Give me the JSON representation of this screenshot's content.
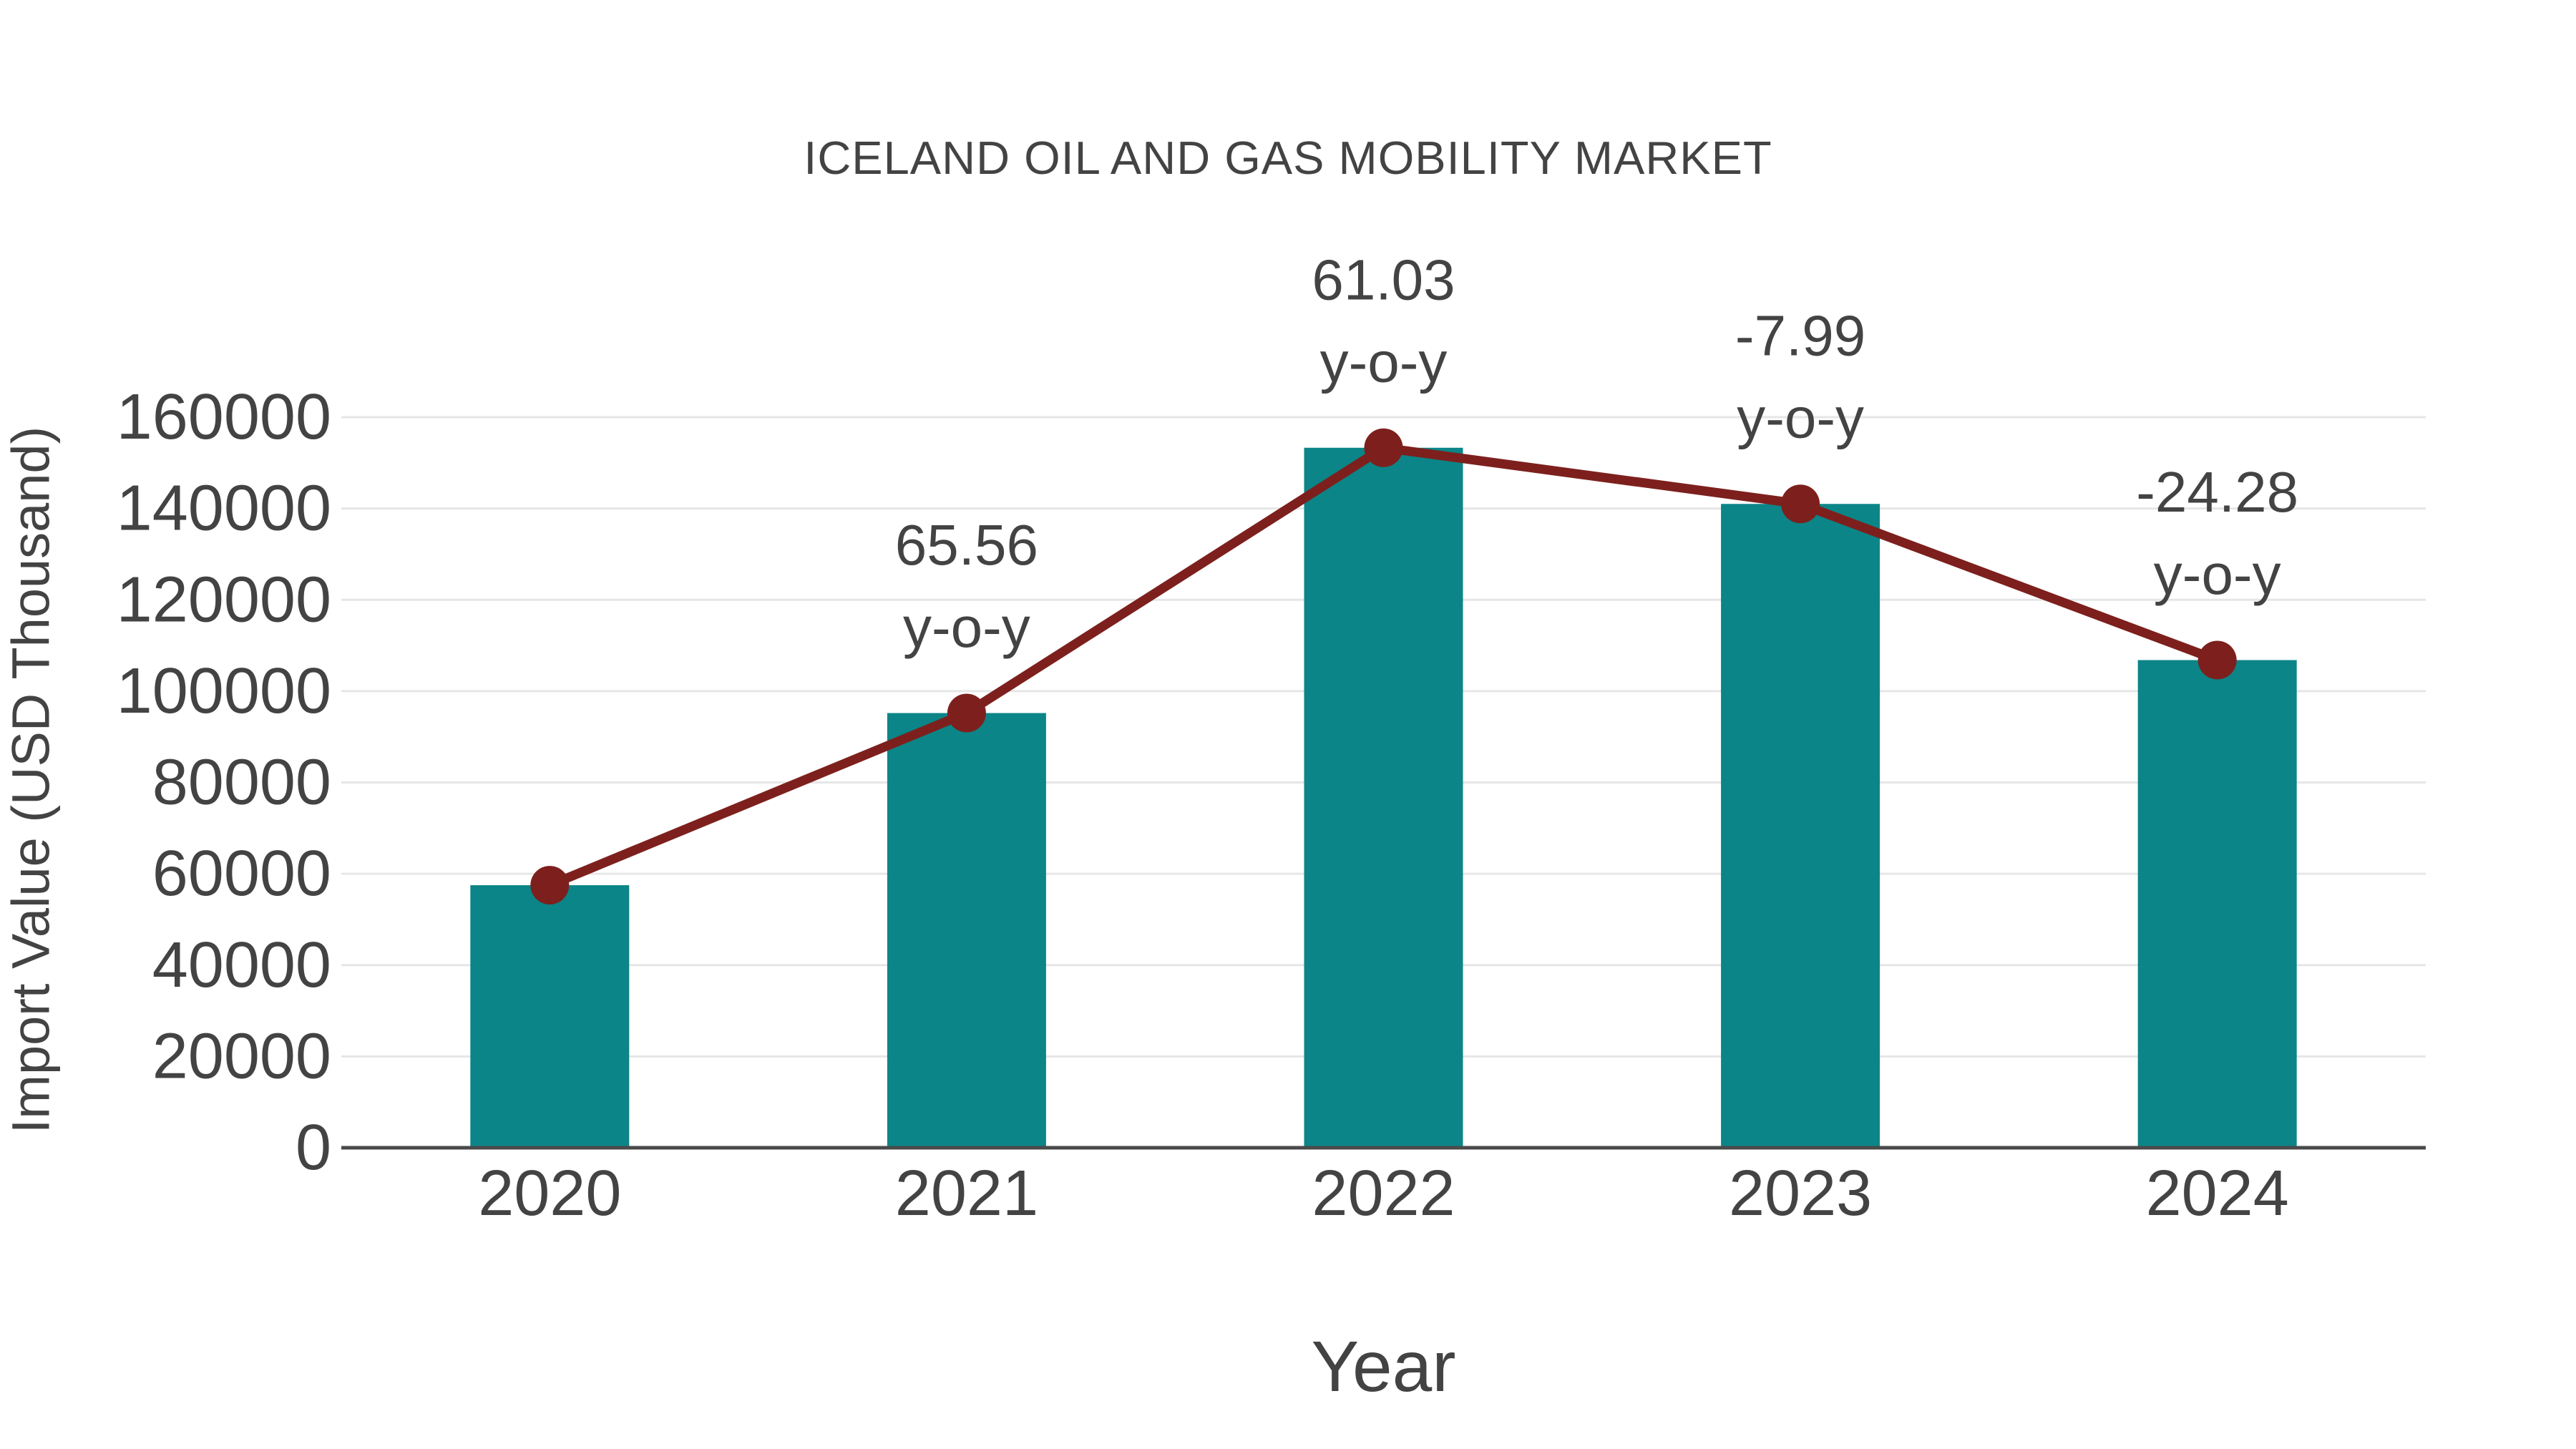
{
  "title": "ICELAND OIL AND GAS MOBILITY MARKET",
  "x_axis_label": "Year",
  "y_axis_label": "Import Value (USD Thousand)",
  "colors": {
    "bar": "#0b8587",
    "line": "#7d201d",
    "marker": "#7d201d",
    "text": "#434343",
    "grid": "#e6e6e6",
    "axis": "#4a4a4a",
    "background": "#ffffff"
  },
  "chart_data": {
    "type": "bar",
    "title": "ICELAND OIL AND GAS MOBILITY MARKET",
    "xlabel": "Year",
    "ylabel": "Import Value (USD Thousand)",
    "categories": [
      "2020",
      "2021",
      "2022",
      "2023",
      "2024"
    ],
    "series": [
      {
        "name": "Import Value (USD Thousand)",
        "type": "bar",
        "values": [
          57500,
          95200,
          153300,
          141000,
          106800
        ]
      },
      {
        "name": "y-o-y",
        "type": "line",
        "values": [
          null,
          65.56,
          61.03,
          -7.99,
          -24.28
        ]
      }
    ],
    "annotations": [
      {
        "category": "2021",
        "line1": "65.56",
        "line2": "y-o-y"
      },
      {
        "category": "2022",
        "line1": "61.03",
        "line2": "y-o-y"
      },
      {
        "category": "2023",
        "line1": "-7.99",
        "line2": "y-o-y"
      },
      {
        "category": "2024",
        "line1": "-24.28",
        "line2": "y-o-y"
      }
    ],
    "ylim": [
      0,
      160000
    ],
    "ytick_labels": [
      "0",
      "20000",
      "40000",
      "60000",
      "80000",
      "100000",
      "120000",
      "140000",
      "160000"
    ],
    "grid": true,
    "legend_position": "none"
  }
}
